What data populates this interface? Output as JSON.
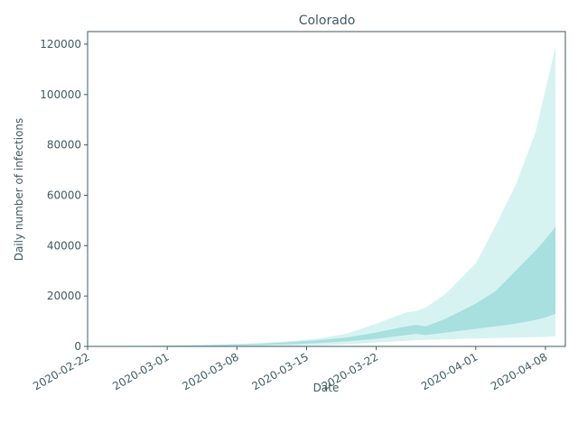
{
  "chart_data": {
    "type": "area",
    "title": "Colorado",
    "xlabel": "Date",
    "ylabel": "Daily number of infections",
    "x_ticks": [
      "2020-02-22",
      "2020-03-01",
      "2020-03-08",
      "2020-03-15",
      "2020-03-22",
      "2020-04-01",
      "2020-04-08"
    ],
    "y_ticks": [
      0,
      20000,
      40000,
      60000,
      80000,
      100000,
      120000
    ],
    "xlim": [
      "2020-02-22",
      "2020-04-10"
    ],
    "ylim": [
      0,
      125000
    ],
    "grid": false,
    "colors": {
      "outer_band": "#d6f3f2",
      "inner_band": "#a8dfdf",
      "axis": "#3f5a63"
    },
    "series": [
      {
        "band": "outer",
        "x": [
          "2020-02-24",
          "2020-02-27",
          "2020-03-01",
          "2020-03-04",
          "2020-03-07",
          "2020-03-10",
          "2020-03-13",
          "2020-03-16",
          "2020-03-19",
          "2020-03-22",
          "2020-03-25",
          "2020-03-26",
          "2020-03-27",
          "2020-03-29",
          "2020-04-01",
          "2020-04-03",
          "2020-04-05",
          "2020-04-07",
          "2020-04-08",
          "2020-04-09"
        ],
        "low": [
          0,
          0,
          0,
          0,
          0,
          100,
          200,
          400,
          800,
          1500,
          2200,
          2400,
          2600,
          2800,
          3100,
          3300,
          3500,
          3700,
          3800,
          4000
        ],
        "high": [
          100,
          200,
          300,
          500,
          800,
          1300,
          2000,
          3000,
          5000,
          9000,
          13500,
          14000,
          15500,
          21000,
          33000,
          48000,
          64000,
          85000,
          102000,
          119000
        ]
      },
      {
        "band": "inner",
        "x": [
          "2020-02-24",
          "2020-02-27",
          "2020-03-01",
          "2020-03-04",
          "2020-03-07",
          "2020-03-10",
          "2020-03-13",
          "2020-03-16",
          "2020-03-19",
          "2020-03-22",
          "2020-03-25",
          "2020-03-26",
          "2020-03-27",
          "2020-03-29",
          "2020-04-01",
          "2020-04-03",
          "2020-04-05",
          "2020-04-07",
          "2020-04-08",
          "2020-04-09"
        ],
        "low": [
          0,
          50,
          100,
          200,
          300,
          500,
          800,
          1300,
          2000,
          3000,
          4500,
          5000,
          4500,
          5500,
          7000,
          8000,
          9000,
          10500,
          11500,
          13000
        ],
        "high": [
          100,
          150,
          300,
          450,
          700,
          1000,
          1600,
          2400,
          3500,
          5500,
          8000,
          8500,
          8000,
          11000,
          17000,
          22000,
          30000,
          38000,
          42500,
          47500
        ]
      }
    ]
  }
}
